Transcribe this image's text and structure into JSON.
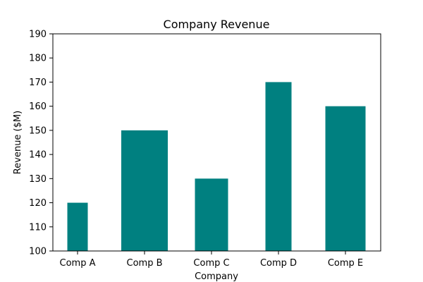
{
  "chart_data": {
    "type": "bar",
    "title": "Company Revenue",
    "xlabel": "Company",
    "ylabel": "Revenue ($M)",
    "categories": [
      "Comp A",
      "Comp B",
      "Comp C",
      "Comp D",
      "Comp E"
    ],
    "values": [
      120,
      150,
      130,
      170,
      160
    ],
    "ylim": [
      100,
      190
    ],
    "yticks": [
      100,
      110,
      120,
      130,
      140,
      150,
      160,
      170,
      180,
      190
    ],
    "bar_color": "#008080",
    "grid": false,
    "legend": "none"
  }
}
